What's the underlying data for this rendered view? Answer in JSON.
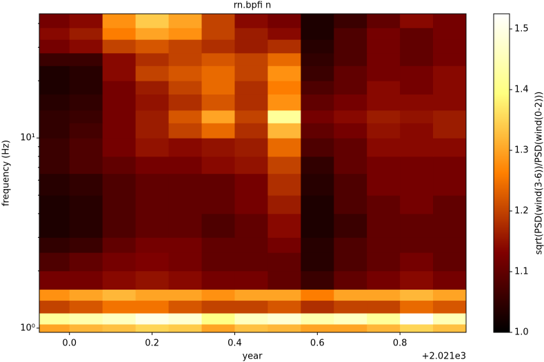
{
  "chart_data": {
    "type": "heatmap",
    "title": "rn.bpfi n",
    "x_label": "year",
    "x_offset_label": "+2.021e3",
    "y_label": "frequency (Hz)",
    "colorbar_label": "sqrt(PSD(wind(3-6))/PSD(wind(0-2)))",
    "colormap": "afmhot",
    "ylog": true,
    "xlim": [
      -0.073,
      0.96
    ],
    "ylim": [
      0.95,
      45
    ],
    "clim": [
      1.0,
      1.525
    ],
    "xticks": [
      {
        "value": 0,
        "label": "0.0"
      },
      0.2,
      0.4,
      0.6,
      0.8
    ],
    "yticks": [
      {
        "value": 1,
        "label": "10⁰"
      },
      {
        "value": 10,
        "label": "10¹"
      }
    ],
    "yminorticks": [
      2,
      3,
      4,
      5,
      6,
      7,
      8,
      9,
      20,
      30,
      40
    ],
    "cticks": [
      {
        "value": 1,
        "label": "1.0"
      },
      1.1,
      1.2,
      1.3,
      1.4,
      1.5
    ],
    "xbins": [
      -0.073,
      0,
      0.08,
      0.16,
      0.24,
      0.32,
      0.4,
      0.48,
      0.56,
      0.64,
      0.72,
      0.8,
      0.88,
      0.96
    ],
    "ybins": [
      0.95,
      1.05,
      1.2,
      1.4,
      1.6,
      2,
      2.5,
      3,
      4,
      5,
      6.5,
      8,
      10,
      12,
      14,
      17,
      20,
      24,
      28,
      33,
      38,
      45
    ],
    "z": [
      [
        1.3,
        1.32,
        1.33,
        1.35,
        1.34,
        1.3,
        1.33,
        1.32,
        1.3,
        1.3,
        1.32,
        1.35,
        1.33
      ],
      [
        1.42,
        1.44,
        1.46,
        1.5,
        1.48,
        1.4,
        1.46,
        1.48,
        1.44,
        1.46,
        1.42,
        1.52,
        1.45
      ],
      [
        1.2,
        1.22,
        1.25,
        1.25,
        1.22,
        1.2,
        1.2,
        1.22,
        1.18,
        1.2,
        1.2,
        1.24,
        1.22
      ],
      [
        1.28,
        1.3,
        1.32,
        1.3,
        1.3,
        1.28,
        1.3,
        1.3,
        1.26,
        1.3,
        1.3,
        1.32,
        1.3
      ],
      [
        1.12,
        1.12,
        1.14,
        1.15,
        1.14,
        1.12,
        1.12,
        1.1,
        1.06,
        1.1,
        1.12,
        1.14,
        1.12
      ],
      [
        1.08,
        1.1,
        1.12,
        1.13,
        1.12,
        1.1,
        1.1,
        1.1,
        1.04,
        1.08,
        1.1,
        1.12,
        1.1
      ],
      [
        1.05,
        1.06,
        1.1,
        1.12,
        1.12,
        1.1,
        1.1,
        1.12,
        1.04,
        1.08,
        1.1,
        1.1,
        1.1
      ],
      [
        1.03,
        1.04,
        1.08,
        1.1,
        1.1,
        1.08,
        1.1,
        1.14,
        1.03,
        1.06,
        1.1,
        1.1,
        1.1
      ],
      [
        1.03,
        1.04,
        1.08,
        1.1,
        1.1,
        1.1,
        1.12,
        1.16,
        1.03,
        1.08,
        1.1,
        1.12,
        1.1
      ],
      [
        1.04,
        1.05,
        1.08,
        1.1,
        1.1,
        1.1,
        1.12,
        1.18,
        1.04,
        1.08,
        1.12,
        1.12,
        1.12
      ],
      [
        1.06,
        1.08,
        1.1,
        1.12,
        1.12,
        1.14,
        1.15,
        1.2,
        1.05,
        1.1,
        1.12,
        1.12,
        1.12
      ],
      [
        1.06,
        1.08,
        1.12,
        1.15,
        1.14,
        1.15,
        1.16,
        1.24,
        1.08,
        1.1,
        1.14,
        1.14,
        1.14
      ],
      [
        1.05,
        1.07,
        1.12,
        1.16,
        1.2,
        1.24,
        1.18,
        1.32,
        1.1,
        1.12,
        1.15,
        1.14,
        1.16
      ],
      [
        1.05,
        1.06,
        1.12,
        1.16,
        1.22,
        1.3,
        1.2,
        1.42,
        1.12,
        1.14,
        1.16,
        1.15,
        1.16
      ],
      [
        1.04,
        1.05,
        1.12,
        1.15,
        1.18,
        1.22,
        1.18,
        1.28,
        1.1,
        1.12,
        1.14,
        1.14,
        1.14
      ],
      [
        1.03,
        1.04,
        1.12,
        1.16,
        1.2,
        1.24,
        1.18,
        1.26,
        1.08,
        1.1,
        1.14,
        1.12,
        1.14
      ],
      [
        1.03,
        1.04,
        1.14,
        1.2,
        1.22,
        1.24,
        1.2,
        1.28,
        1.06,
        1.1,
        1.12,
        1.12,
        1.14
      ],
      [
        1.06,
        1.06,
        1.14,
        1.18,
        1.2,
        1.22,
        1.2,
        1.24,
        1.05,
        1.08,
        1.12,
        1.1,
        1.12
      ],
      [
        1.12,
        1.14,
        1.2,
        1.22,
        1.2,
        1.18,
        1.16,
        1.18,
        1.04,
        1.08,
        1.12,
        1.1,
        1.12
      ],
      [
        1.14,
        1.16,
        1.26,
        1.3,
        1.28,
        1.2,
        1.16,
        1.14,
        1.03,
        1.08,
        1.12,
        1.1,
        1.12
      ],
      [
        1.12,
        1.14,
        1.28,
        1.34,
        1.3,
        1.2,
        1.14,
        1.12,
        1.03,
        1.06,
        1.1,
        1.14,
        1.12
      ]
    ]
  }
}
